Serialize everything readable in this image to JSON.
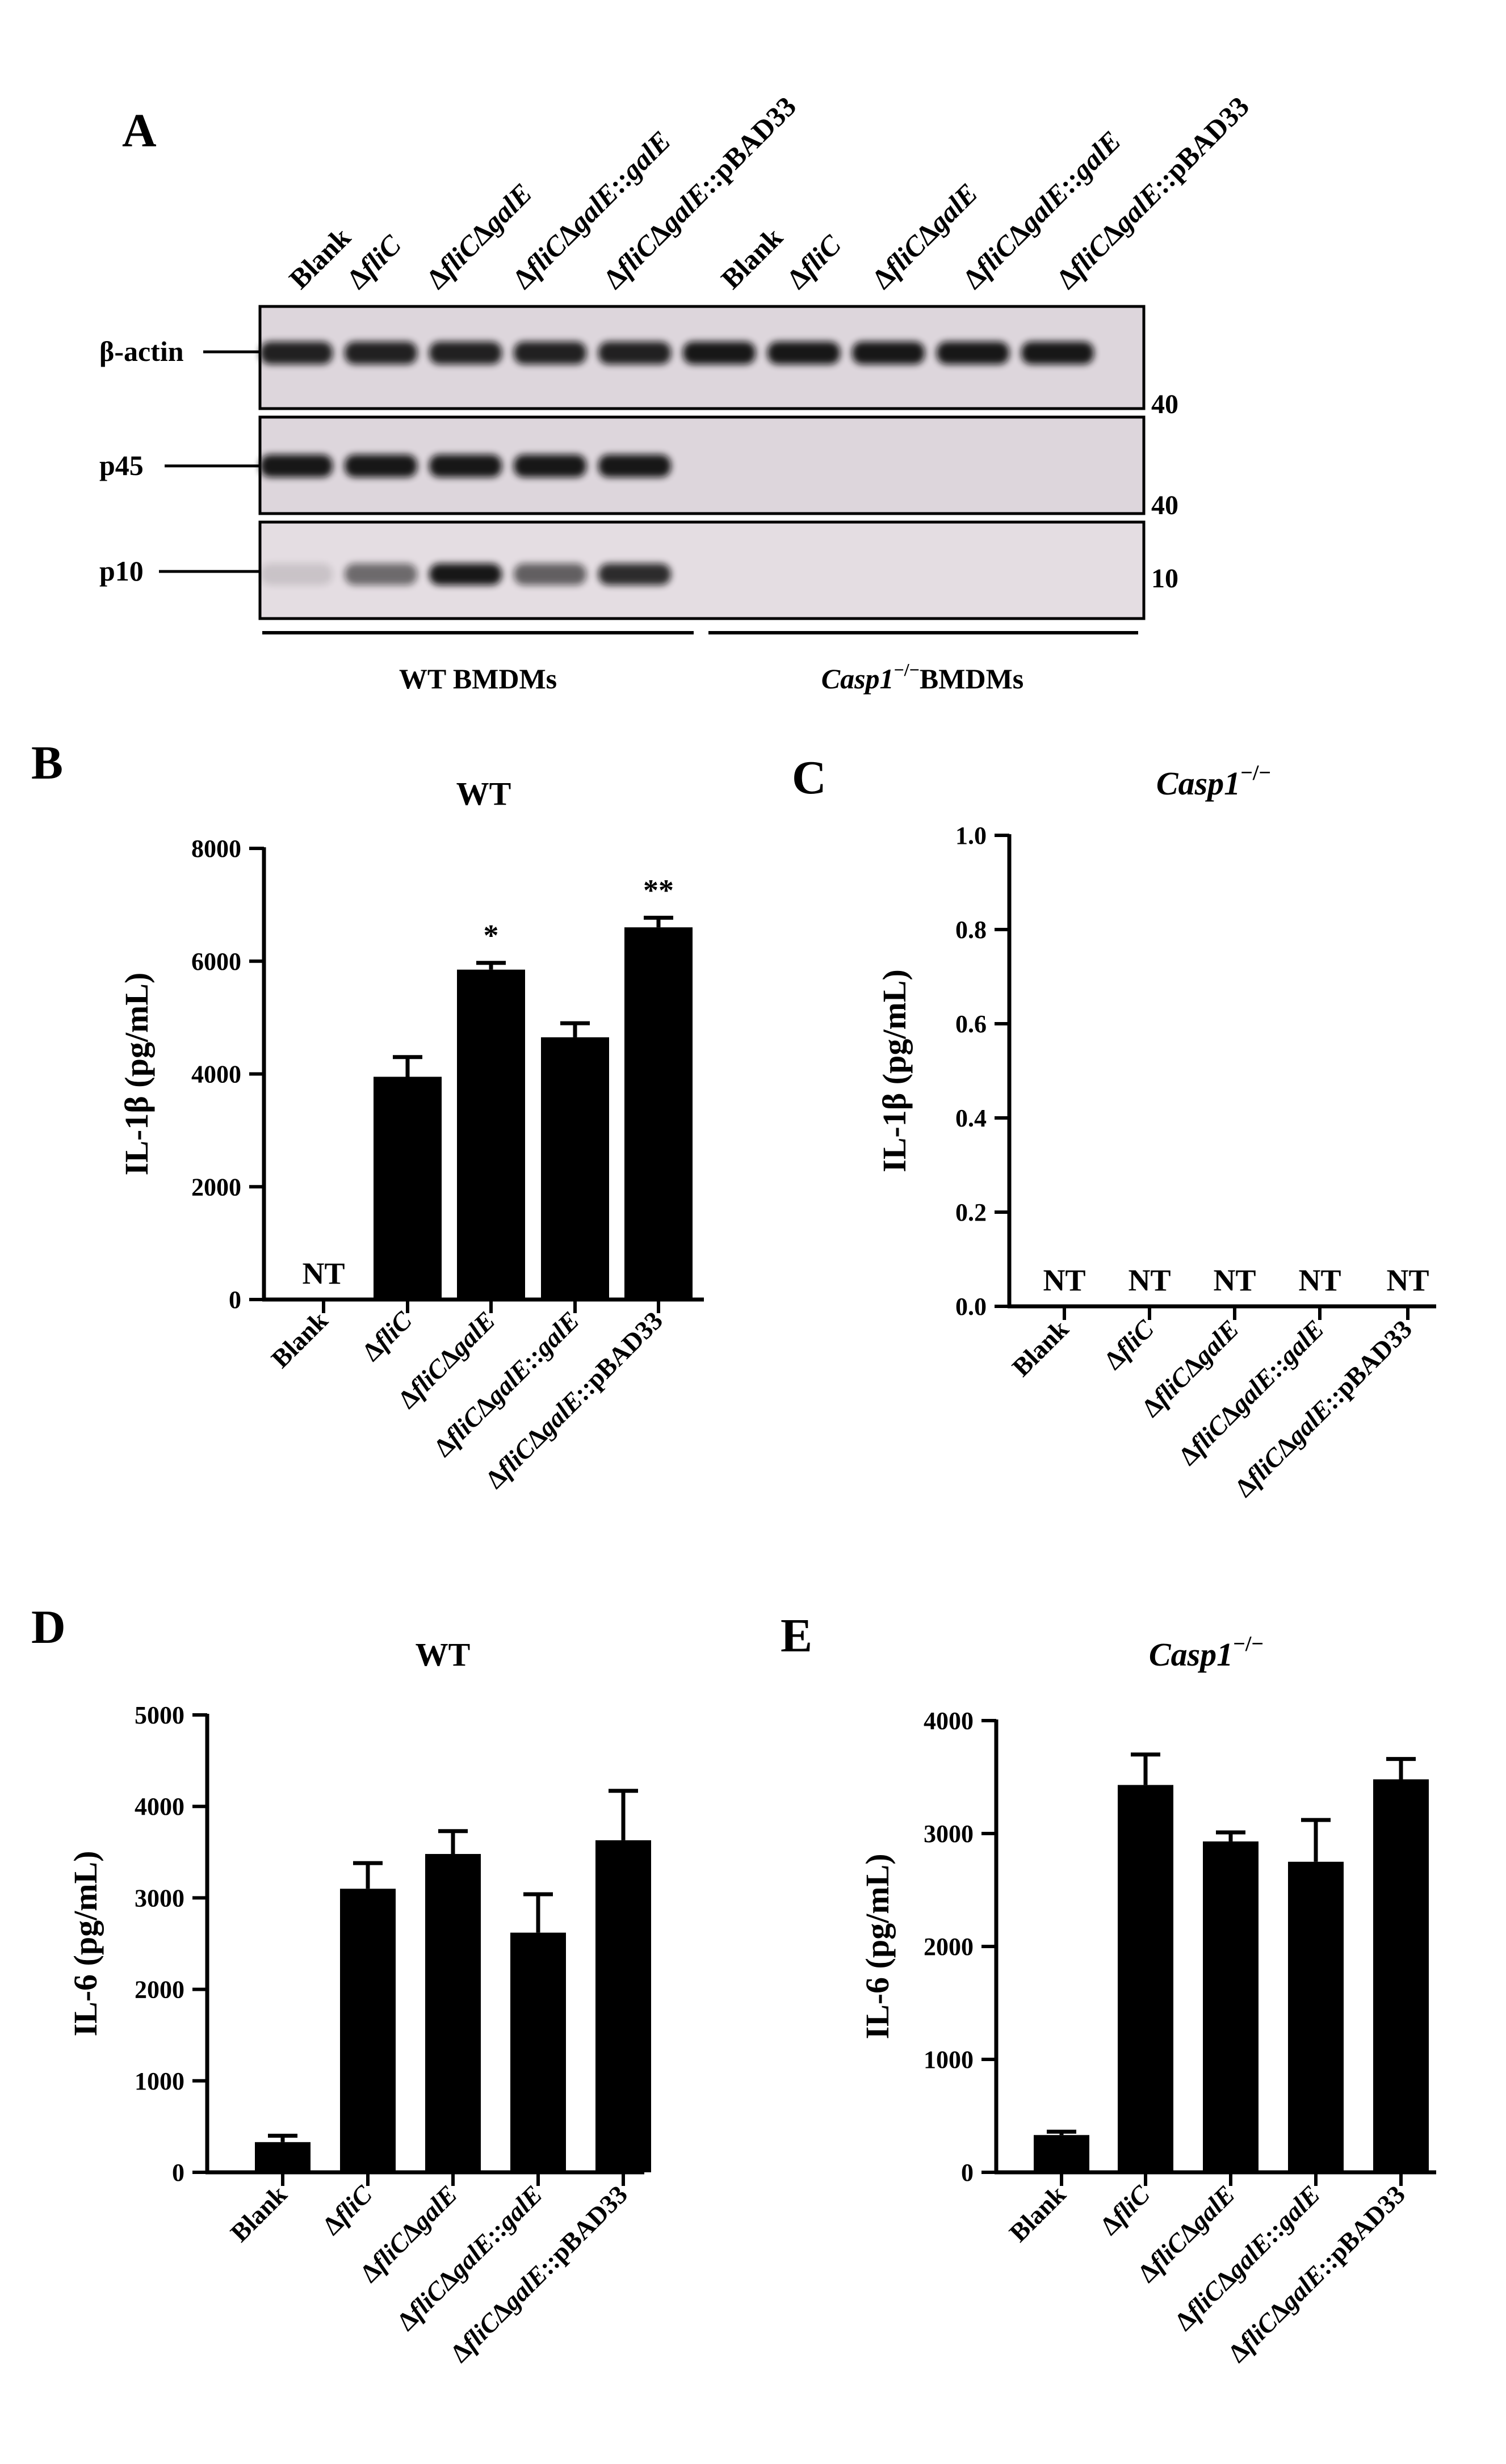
{
  "panel_a": {
    "letter": "A",
    "lanes": [
      {
        "parts": [
          {
            "t": "Blank",
            "i": false
          }
        ]
      },
      {
        "parts": [
          {
            "t": "Δ",
            "i": false
          },
          {
            "t": "fliC",
            "i": true
          }
        ]
      },
      {
        "parts": [
          {
            "t": "Δ",
            "i": false
          },
          {
            "t": "fliC",
            "i": true
          },
          {
            "t": "Δ",
            "i": false
          },
          {
            "t": "galE",
            "i": true
          }
        ]
      },
      {
        "parts": [
          {
            "t": "Δ",
            "i": false
          },
          {
            "t": "fliC",
            "i": true
          },
          {
            "t": "Δ",
            "i": false
          },
          {
            "t": "galE",
            "i": true
          },
          {
            "t": "::",
            "i": false
          },
          {
            "t": "galE",
            "i": true
          }
        ]
      },
      {
        "parts": [
          {
            "t": "Δ",
            "i": false
          },
          {
            "t": "fliC",
            "i": true
          },
          {
            "t": "Δ",
            "i": false
          },
          {
            "t": "galE",
            "i": true
          },
          {
            "t": "::pBAD33",
            "i": false
          }
        ]
      },
      {
        "parts": [
          {
            "t": "Blank",
            "i": false
          }
        ]
      },
      {
        "parts": [
          {
            "t": "Δ",
            "i": false
          },
          {
            "t": "fliC",
            "i": true
          }
        ]
      },
      {
        "parts": [
          {
            "t": "Δ",
            "i": false
          },
          {
            "t": "fliC",
            "i": true
          },
          {
            "t": "Δ",
            "i": false
          },
          {
            "t": "galE",
            "i": true
          }
        ]
      },
      {
        "parts": [
          {
            "t": "Δ",
            "i": false
          },
          {
            "t": "fliC",
            "i": true
          },
          {
            "t": "Δ",
            "i": false
          },
          {
            "t": "galE",
            "i": true
          },
          {
            "t": "::",
            "i": false
          },
          {
            "t": "galE",
            "i": true
          }
        ]
      },
      {
        "parts": [
          {
            "t": "Δ",
            "i": false
          },
          {
            "t": "fliC",
            "i": true
          },
          {
            "t": "Δ",
            "i": false
          },
          {
            "t": "galE",
            "i": true
          },
          {
            "t": "::pBAD33",
            "i": false
          }
        ]
      }
    ],
    "blots": [
      {
        "label": "β-actin",
        "marker": "40",
        "intensities": [
          0.9,
          0.9,
          0.9,
          0.9,
          0.9,
          0.95,
          0.95,
          0.95,
          0.95,
          0.95
        ]
      },
      {
        "label": "p45",
        "marker": "40",
        "intensities": [
          0.95,
          0.95,
          0.95,
          0.95,
          0.95,
          0,
          0,
          0,
          0,
          0
        ]
      },
      {
        "label": "p10",
        "marker": "10",
        "intensities": [
          0.12,
          0.55,
          0.95,
          0.6,
          0.85,
          0,
          0,
          0,
          0,
          0
        ]
      }
    ],
    "group_wt": "WT BMDMs",
    "group_ko_gene": "Casp1",
    "group_ko_super": "−/−",
    "group_ko_text": "BMDMs"
  },
  "chart_data": [
    {
      "panel": "B",
      "type": "bar",
      "title": "WT",
      "title_italic": false,
      "title_super": "",
      "ylabel": "IL-1β (pg/mL)",
      "ylim": [
        0,
        8000
      ],
      "yticks": [
        "0",
        "2000",
        "4000",
        "6000",
        "8000"
      ],
      "categories": [
        {
          "parts": [
            {
              "t": "Blank",
              "i": false
            }
          ]
        },
        {
          "parts": [
            {
              "t": "Δ",
              "i": false
            },
            {
              "t": "fliC",
              "i": true
            }
          ]
        },
        {
          "parts": [
            {
              "t": "Δ",
              "i": false
            },
            {
              "t": "fliC",
              "i": true
            },
            {
              "t": "Δ",
              "i": false
            },
            {
              "t": "galE",
              "i": true
            }
          ]
        },
        {
          "parts": [
            {
              "t": "Δ",
              "i": false
            },
            {
              "t": "fliC",
              "i": true
            },
            {
              "t": "Δ",
              "i": false
            },
            {
              "t": "galE",
              "i": true
            },
            {
              "t": "::",
              "i": false
            },
            {
              "t": "galE",
              "i": true
            }
          ]
        },
        {
          "parts": [
            {
              "t": "Δ",
              "i": false
            },
            {
              "t": "fliC",
              "i": true
            },
            {
              "t": "Δ",
              "i": false
            },
            {
              "t": "galE",
              "i": true
            },
            {
              "t": "::pBAD33",
              "i": false
            }
          ]
        }
      ],
      "values": [
        null,
        3950,
        5850,
        4650,
        6600
      ],
      "errors": [
        null,
        350,
        120,
        250,
        170
      ],
      "bar_labels": [
        "NT",
        null,
        null,
        null,
        null
      ],
      "sig": [
        null,
        null,
        "*",
        null,
        "**"
      ]
    },
    {
      "panel": "C",
      "type": "bar",
      "title": "Casp1",
      "title_italic": true,
      "title_super": "−/−",
      "ylabel": "IL-1β (pg/mL)",
      "ylim": [
        0,
        1.0
      ],
      "yticks": [
        "0.0",
        "0.2",
        "0.4",
        "0.6",
        "0.8",
        "1.0"
      ],
      "categories": [
        {
          "parts": [
            {
              "t": "Blank",
              "i": false
            }
          ]
        },
        {
          "parts": [
            {
              "t": "Δ",
              "i": false
            },
            {
              "t": "fliC",
              "i": true
            }
          ]
        },
        {
          "parts": [
            {
              "t": "Δ",
              "i": false
            },
            {
              "t": "fliC",
              "i": true
            },
            {
              "t": "Δ",
              "i": false
            },
            {
              "t": "galE",
              "i": true
            }
          ]
        },
        {
          "parts": [
            {
              "t": "Δ",
              "i": false
            },
            {
              "t": "fliC",
              "i": true
            },
            {
              "t": "Δ",
              "i": false
            },
            {
              "t": "galE",
              "i": true
            },
            {
              "t": "::",
              "i": false
            },
            {
              "t": "galE",
              "i": true
            }
          ]
        },
        {
          "parts": [
            {
              "t": "Δ",
              "i": false
            },
            {
              "t": "fliC",
              "i": true
            },
            {
              "t": "Δ",
              "i": false
            },
            {
              "t": "galE",
              "i": true
            },
            {
              "t": "::pBAD33",
              "i": false
            }
          ]
        }
      ],
      "values": [
        null,
        null,
        null,
        null,
        null
      ],
      "errors": [
        null,
        null,
        null,
        null,
        null
      ],
      "bar_labels": [
        "NT",
        "NT",
        "NT",
        "NT",
        "NT"
      ],
      "sig": [
        null,
        null,
        null,
        null,
        null
      ]
    },
    {
      "panel": "D",
      "type": "bar",
      "title": "WT",
      "title_italic": false,
      "title_super": "",
      "ylabel": "IL-6 (pg/mL)",
      "ylim": [
        0,
        5000
      ],
      "yticks": [
        "0",
        "1000",
        "2000",
        "3000",
        "4000",
        "5000"
      ],
      "categories": [
        {
          "parts": [
            {
              "t": "Blank",
              "i": false
            }
          ]
        },
        {
          "parts": [
            {
              "t": "Δ",
              "i": false
            },
            {
              "t": "fliC",
              "i": true
            }
          ]
        },
        {
          "parts": [
            {
              "t": "Δ",
              "i": false
            },
            {
              "t": "fliC",
              "i": true
            },
            {
              "t": "Δ",
              "i": false
            },
            {
              "t": "galE",
              "i": true
            }
          ]
        },
        {
          "parts": [
            {
              "t": "Δ",
              "i": false
            },
            {
              "t": "fliC",
              "i": true
            },
            {
              "t": "Δ",
              "i": false
            },
            {
              "t": "galE",
              "i": true
            },
            {
              "t": "::",
              "i": false
            },
            {
              "t": "galE",
              "i": true
            }
          ]
        },
        {
          "parts": [
            {
              "t": "Δ",
              "i": false
            },
            {
              "t": "fliC",
              "i": true
            },
            {
              "t": "Δ",
              "i": false
            },
            {
              "t": "galE",
              "i": true
            },
            {
              "t": "::pBAD33",
              "i": false
            }
          ]
        }
      ],
      "values": [
        330,
        3100,
        3480,
        2620,
        3630
      ],
      "errors": [
        70,
        280,
        250,
        420,
        540
      ],
      "bar_labels": [
        null,
        null,
        null,
        null,
        null
      ],
      "sig": [
        null,
        null,
        null,
        null,
        null
      ]
    },
    {
      "panel": "E",
      "type": "bar",
      "title": "Casp1",
      "title_italic": true,
      "title_super": "−/−",
      "ylabel": "IL-6 (pg/mL)",
      "ylim": [
        0,
        4000
      ],
      "yticks": [
        "0",
        "1000",
        "2000",
        "3000",
        "4000"
      ],
      "categories": [
        {
          "parts": [
            {
              "t": "Blank",
              "i": false
            }
          ]
        },
        {
          "parts": [
            {
              "t": "Δ",
              "i": false
            },
            {
              "t": "fliC",
              "i": true
            }
          ]
        },
        {
          "parts": [
            {
              "t": "Δ",
              "i": false
            },
            {
              "t": "fliC",
              "i": true
            },
            {
              "t": "Δ",
              "i": false
            },
            {
              "t": "galE",
              "i": true
            }
          ]
        },
        {
          "parts": [
            {
              "t": "Δ",
              "i": false
            },
            {
              "t": "fliC",
              "i": true
            },
            {
              "t": "Δ",
              "i": false
            },
            {
              "t": "galE",
              "i": true
            },
            {
              "t": "::",
              "i": false
            },
            {
              "t": "galE",
              "i": true
            }
          ]
        },
        {
          "parts": [
            {
              "t": "Δ",
              "i": false
            },
            {
              "t": "fliC",
              "i": true
            },
            {
              "t": "Δ",
              "i": false
            },
            {
              "t": "galE",
              "i": true
            },
            {
              "t": "::pBAD33",
              "i": false
            }
          ]
        }
      ],
      "values": [
        330,
        3430,
        2930,
        2750,
        3480
      ],
      "errors": [
        30,
        270,
        80,
        370,
        180
      ],
      "bar_labels": [
        null,
        null,
        null,
        null,
        null
      ],
      "sig": [
        null,
        null,
        null,
        null,
        null
      ]
    }
  ]
}
